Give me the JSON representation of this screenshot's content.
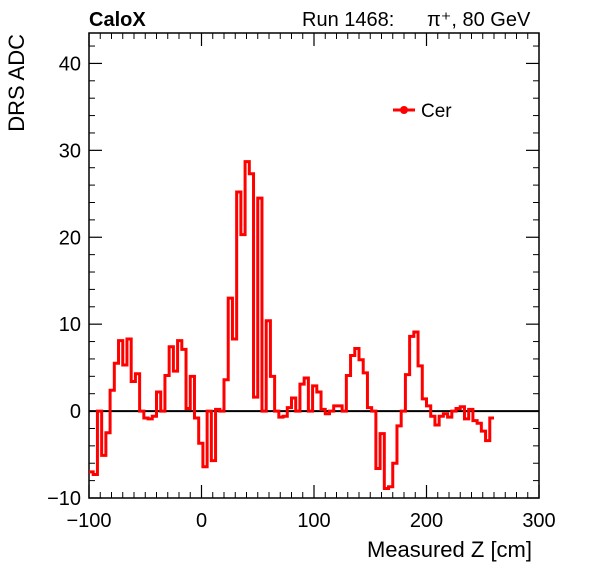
{
  "chart_data": {
    "type": "line",
    "corner_title": "CaloX",
    "run_label": "Run 1468:",
    "beam_label": "π⁺, 80 GeV",
    "xlabel": "Measured Z [cm]",
    "ylabel": "DRS ADC",
    "xlim": [
      -100,
      300
    ],
    "ylim": [
      -10,
      43.5
    ],
    "xticks": [
      -100,
      0,
      100,
      200,
      300
    ],
    "yticks": [
      -10,
      0,
      10,
      20,
      30,
      40
    ],
    "grid": false,
    "legend_position": "top-right",
    "line_color": "#ff0000",
    "bin_width": 3.75,
    "series": [
      {
        "name": "Cer",
        "x_start": -100,
        "values": [
          -7,
          -7.3,
          0,
          -5.1,
          -2.5,
          2.4,
          5.5,
          8.1,
          5.3,
          8.3,
          3.4,
          4.3,
          0,
          -0.8,
          -0.9,
          -0.6,
          2.2,
          0,
          4.1,
          7.4,
          4.6,
          8.1,
          7.1,
          0.3,
          4,
          -0.8,
          -3.7,
          -6.4,
          0,
          -5.7,
          0.2,
          0,
          3.6,
          13,
          8.3,
          25.2,
          20.3,
          28.7,
          27.3,
          1.6,
          24.5,
          0,
          10.4,
          4,
          0,
          -0.7,
          -0.6,
          0.4,
          1.5,
          0,
          3.1,
          3.8,
          0,
          2.9,
          2.2,
          0.2,
          -0.3,
          0,
          0.6,
          0.6,
          0,
          4.1,
          6.4,
          7.2,
          5.9,
          4.4,
          0.4,
          0,
          -6.6,
          -2.6,
          -8.9,
          -8.7,
          -6,
          -1.7,
          0,
          4.2,
          8.6,
          9.1,
          5.2,
          1.4,
          0.6,
          -0.6,
          -1.6,
          -0.6,
          -0.3,
          -0.7,
          0,
          0.3,
          0.5,
          -0.9,
          0.2,
          -1.1,
          -1.4,
          -2.3,
          -3.4,
          -0.8
        ]
      }
    ]
  }
}
